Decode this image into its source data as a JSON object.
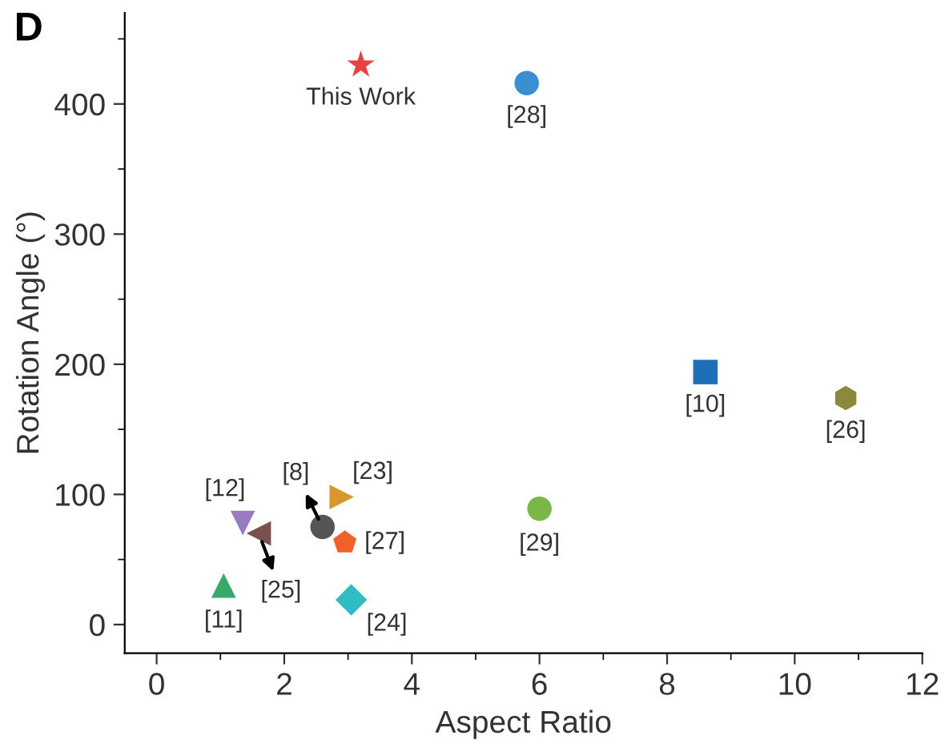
{
  "chart_data": {
    "type": "scatter",
    "xlabel": "Aspect Ratio",
    "ylabel": "Rotation Angle (°)",
    "annotations": [
      "D"
    ],
    "xlim": [
      -0.5,
      12
    ],
    "xticks": [
      0,
      2,
      4,
      6,
      8,
      10,
      12
    ],
    "ylim": [
      -22,
      470
    ],
    "yticks": [
      0,
      100,
      200,
      300,
      400
    ],
    "grid": false,
    "legend": false,
    "series": [
      {
        "name": "This Work",
        "color": "#e8403f",
        "marker": "star",
        "x": [
          3.2
        ],
        "values": [
          430
        ]
      },
      {
        "name": "[28]",
        "color": "#3a8fd0",
        "marker": "circle",
        "x": [
          5.8
        ],
        "values": [
          416
        ]
      },
      {
        "name": "[10]",
        "color": "#1f6fb8",
        "marker": "square",
        "x": [
          8.6
        ],
        "values": [
          194
        ]
      },
      {
        "name": "[26]",
        "color": "#8a8a3a",
        "x": [
          10.8
        ],
        "values": [
          174
        ]
      },
      {
        "name": "[29]",
        "color": "#7ab648",
        "marker": "circle",
        "x": [
          6.0
        ],
        "values": [
          89
        ]
      },
      {
        "name": "[23]",
        "color": "#d4982e",
        "marker": "triangle-right",
        "x": [
          2.9
        ],
        "values": [
          98
        ]
      },
      {
        "name": "[8]",
        "color": "#555555",
        "marker": "circle",
        "x": [
          2.6
        ],
        "values": [
          75
        ]
      },
      {
        "name": "[27]",
        "color": "#f0622a",
        "x": [
          2.95
        ],
        "values": [
          63
        ]
      },
      {
        "name": "[12]",
        "color": "#9a7ac0",
        "marker": "triangle-down",
        "x": [
          1.35
        ],
        "values": [
          78
        ]
      },
      {
        "name": "[25]",
        "color": "#7a5050",
        "marker": "triangle-left",
        "x": [
          1.6
        ],
        "values": [
          70
        ]
      },
      {
        "name": "[11]",
        "color": "#3aa86a",
        "marker": "triangle",
        "x": [
          1.05
        ],
        "values": [
          30
        ]
      },
      {
        "name": "[24]",
        "color": "#30bcc0",
        "marker": "diamond",
        "x": [
          3.05
        ],
        "values": [
          19
        ]
      }
    ]
  }
}
